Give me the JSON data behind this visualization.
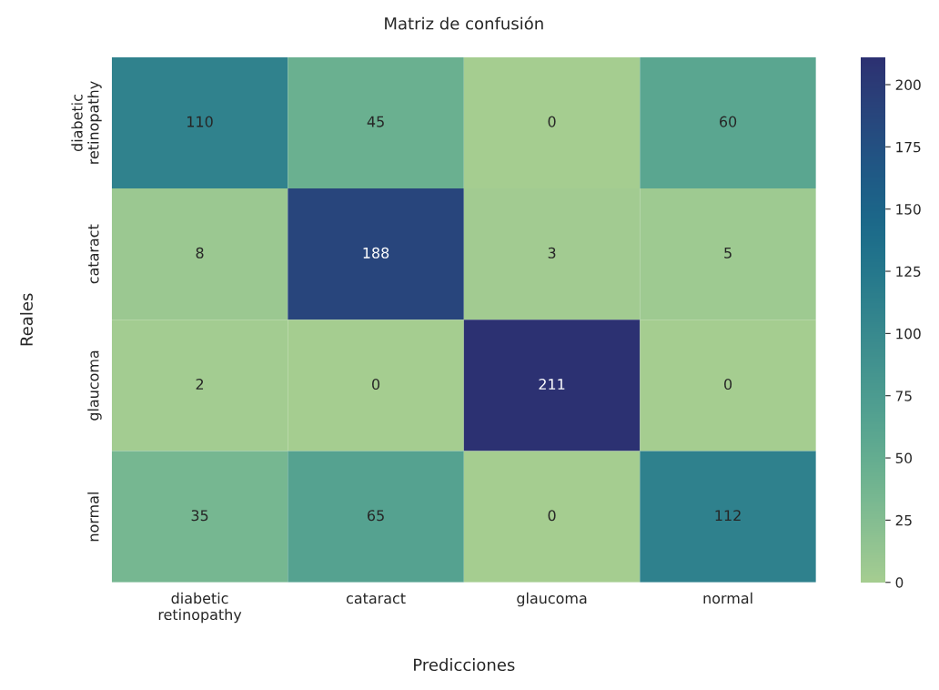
{
  "chart_data": {
    "type": "heatmap",
    "title": "Matriz de confusión",
    "xlabel": "Predicciones",
    "ylabel": "Reales",
    "categories": [
      "diabetic\nretinopathy",
      "cataract",
      "glaucoma",
      "normal"
    ],
    "y_categories": [
      "diabetic\nretinopathy",
      "cataract",
      "glaucoma",
      "normal"
    ],
    "cells": [
      [
        110,
        45,
        0,
        60
      ],
      [
        8,
        188,
        3,
        5
      ],
      [
        2,
        0,
        211,
        0
      ],
      [
        35,
        65,
        0,
        112
      ]
    ],
    "clim": [
      0,
      211
    ],
    "cticks": [
      0,
      25,
      50,
      75,
      100,
      125,
      150,
      175,
      200
    ],
    "data_labels": true
  }
}
